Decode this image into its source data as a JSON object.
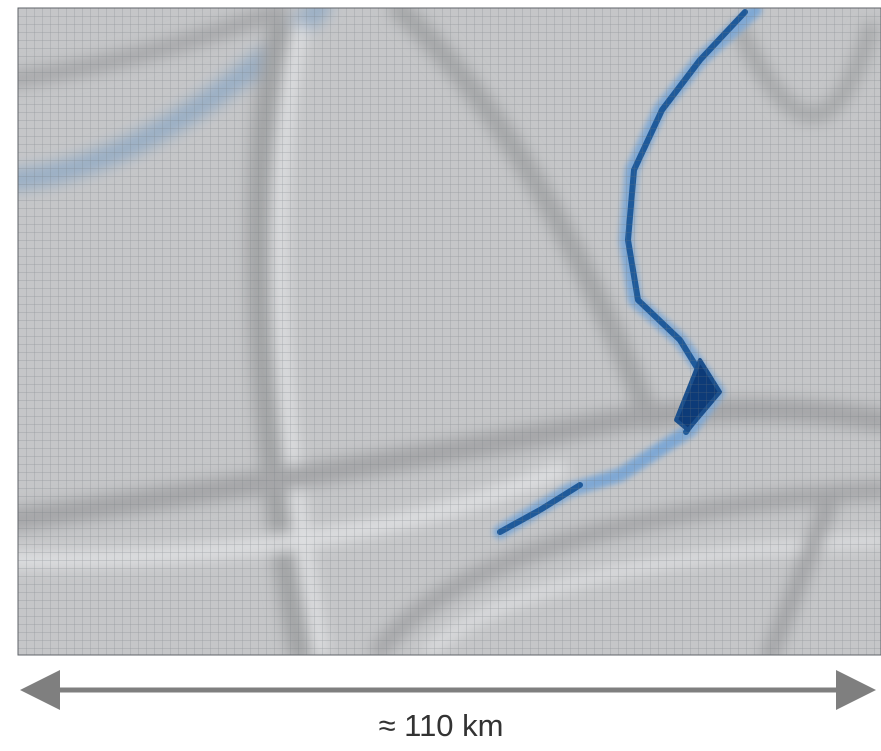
{
  "scale_bar": {
    "label": "≈ 110 km"
  }
}
